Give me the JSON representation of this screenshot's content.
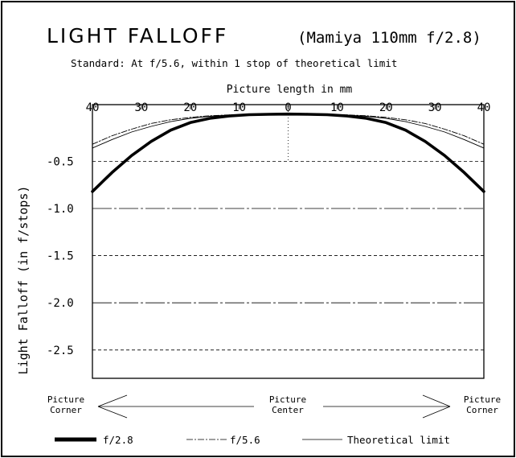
{
  "chart_data": {
    "type": "line",
    "title": "LIGHT FALLOFF",
    "subtitle": "(Mamiya 110mm f/2.8)",
    "standard_note": "Standard: At f/5.6, within 1 stop of theoretical limit",
    "xlabel": "Picture length in mm",
    "ylabel": "Light Falloff (in f/stops)",
    "xlim": [
      -40,
      40
    ],
    "ylim": [
      -2.8,
      0.1
    ],
    "x_ticks": [
      -40,
      -30,
      -20,
      -10,
      0,
      10,
      20,
      30,
      40
    ],
    "x_tick_labels": [
      "40",
      "30",
      "20",
      "10",
      "0",
      "10",
      "20",
      "30",
      "40"
    ],
    "y_ticks": [
      -0.5,
      -1.0,
      -1.5,
      -2.0,
      -2.5
    ],
    "y_tick_labels": [
      "-0.5",
      "-1.0",
      "-1.5",
      "-2.0",
      "-2.5"
    ],
    "bottom_labels": {
      "left": [
        "Picture",
        "Corner"
      ],
      "center": [
        "Picture",
        "Center"
      ],
      "right": [
        "Picture",
        "Corner"
      ]
    },
    "x": [
      -40,
      -36,
      -32,
      -28,
      -24,
      -20,
      -16,
      -12,
      -8,
      -4,
      0,
      4,
      8,
      12,
      16,
      20,
      24,
      28,
      32,
      36,
      40
    ],
    "series": [
      {
        "name": "f/2.8",
        "style": "thick",
        "values": [
          -0.82,
          -0.62,
          -0.44,
          -0.29,
          -0.17,
          -0.09,
          -0.045,
          -0.02,
          -0.007,
          -0.002,
          0,
          -0.002,
          -0.007,
          -0.02,
          -0.045,
          -0.09,
          -0.17,
          -0.29,
          -0.44,
          -0.62,
          -0.82
        ]
      },
      {
        "name": "f/5.6",
        "style": "dashdot",
        "values": [
          -0.32,
          -0.23,
          -0.16,
          -0.1,
          -0.06,
          -0.035,
          -0.018,
          -0.008,
          -0.003,
          -0.001,
          0,
          -0.001,
          -0.003,
          -0.008,
          -0.018,
          -0.035,
          -0.06,
          -0.1,
          -0.16,
          -0.23,
          -0.32
        ]
      },
      {
        "name": "Theoretical limit",
        "style": "thin",
        "values": [
          -0.36,
          -0.27,
          -0.19,
          -0.13,
          -0.08,
          -0.045,
          -0.024,
          -0.011,
          -0.004,
          -0.001,
          0,
          -0.001,
          -0.004,
          -0.011,
          -0.024,
          -0.045,
          -0.08,
          -0.13,
          -0.19,
          -0.27,
          -0.36
        ]
      }
    ],
    "legend": {
      "placement": "bottom",
      "items": [
        "f/2.8",
        "f/5.6",
        "Theoretical limit"
      ]
    }
  }
}
